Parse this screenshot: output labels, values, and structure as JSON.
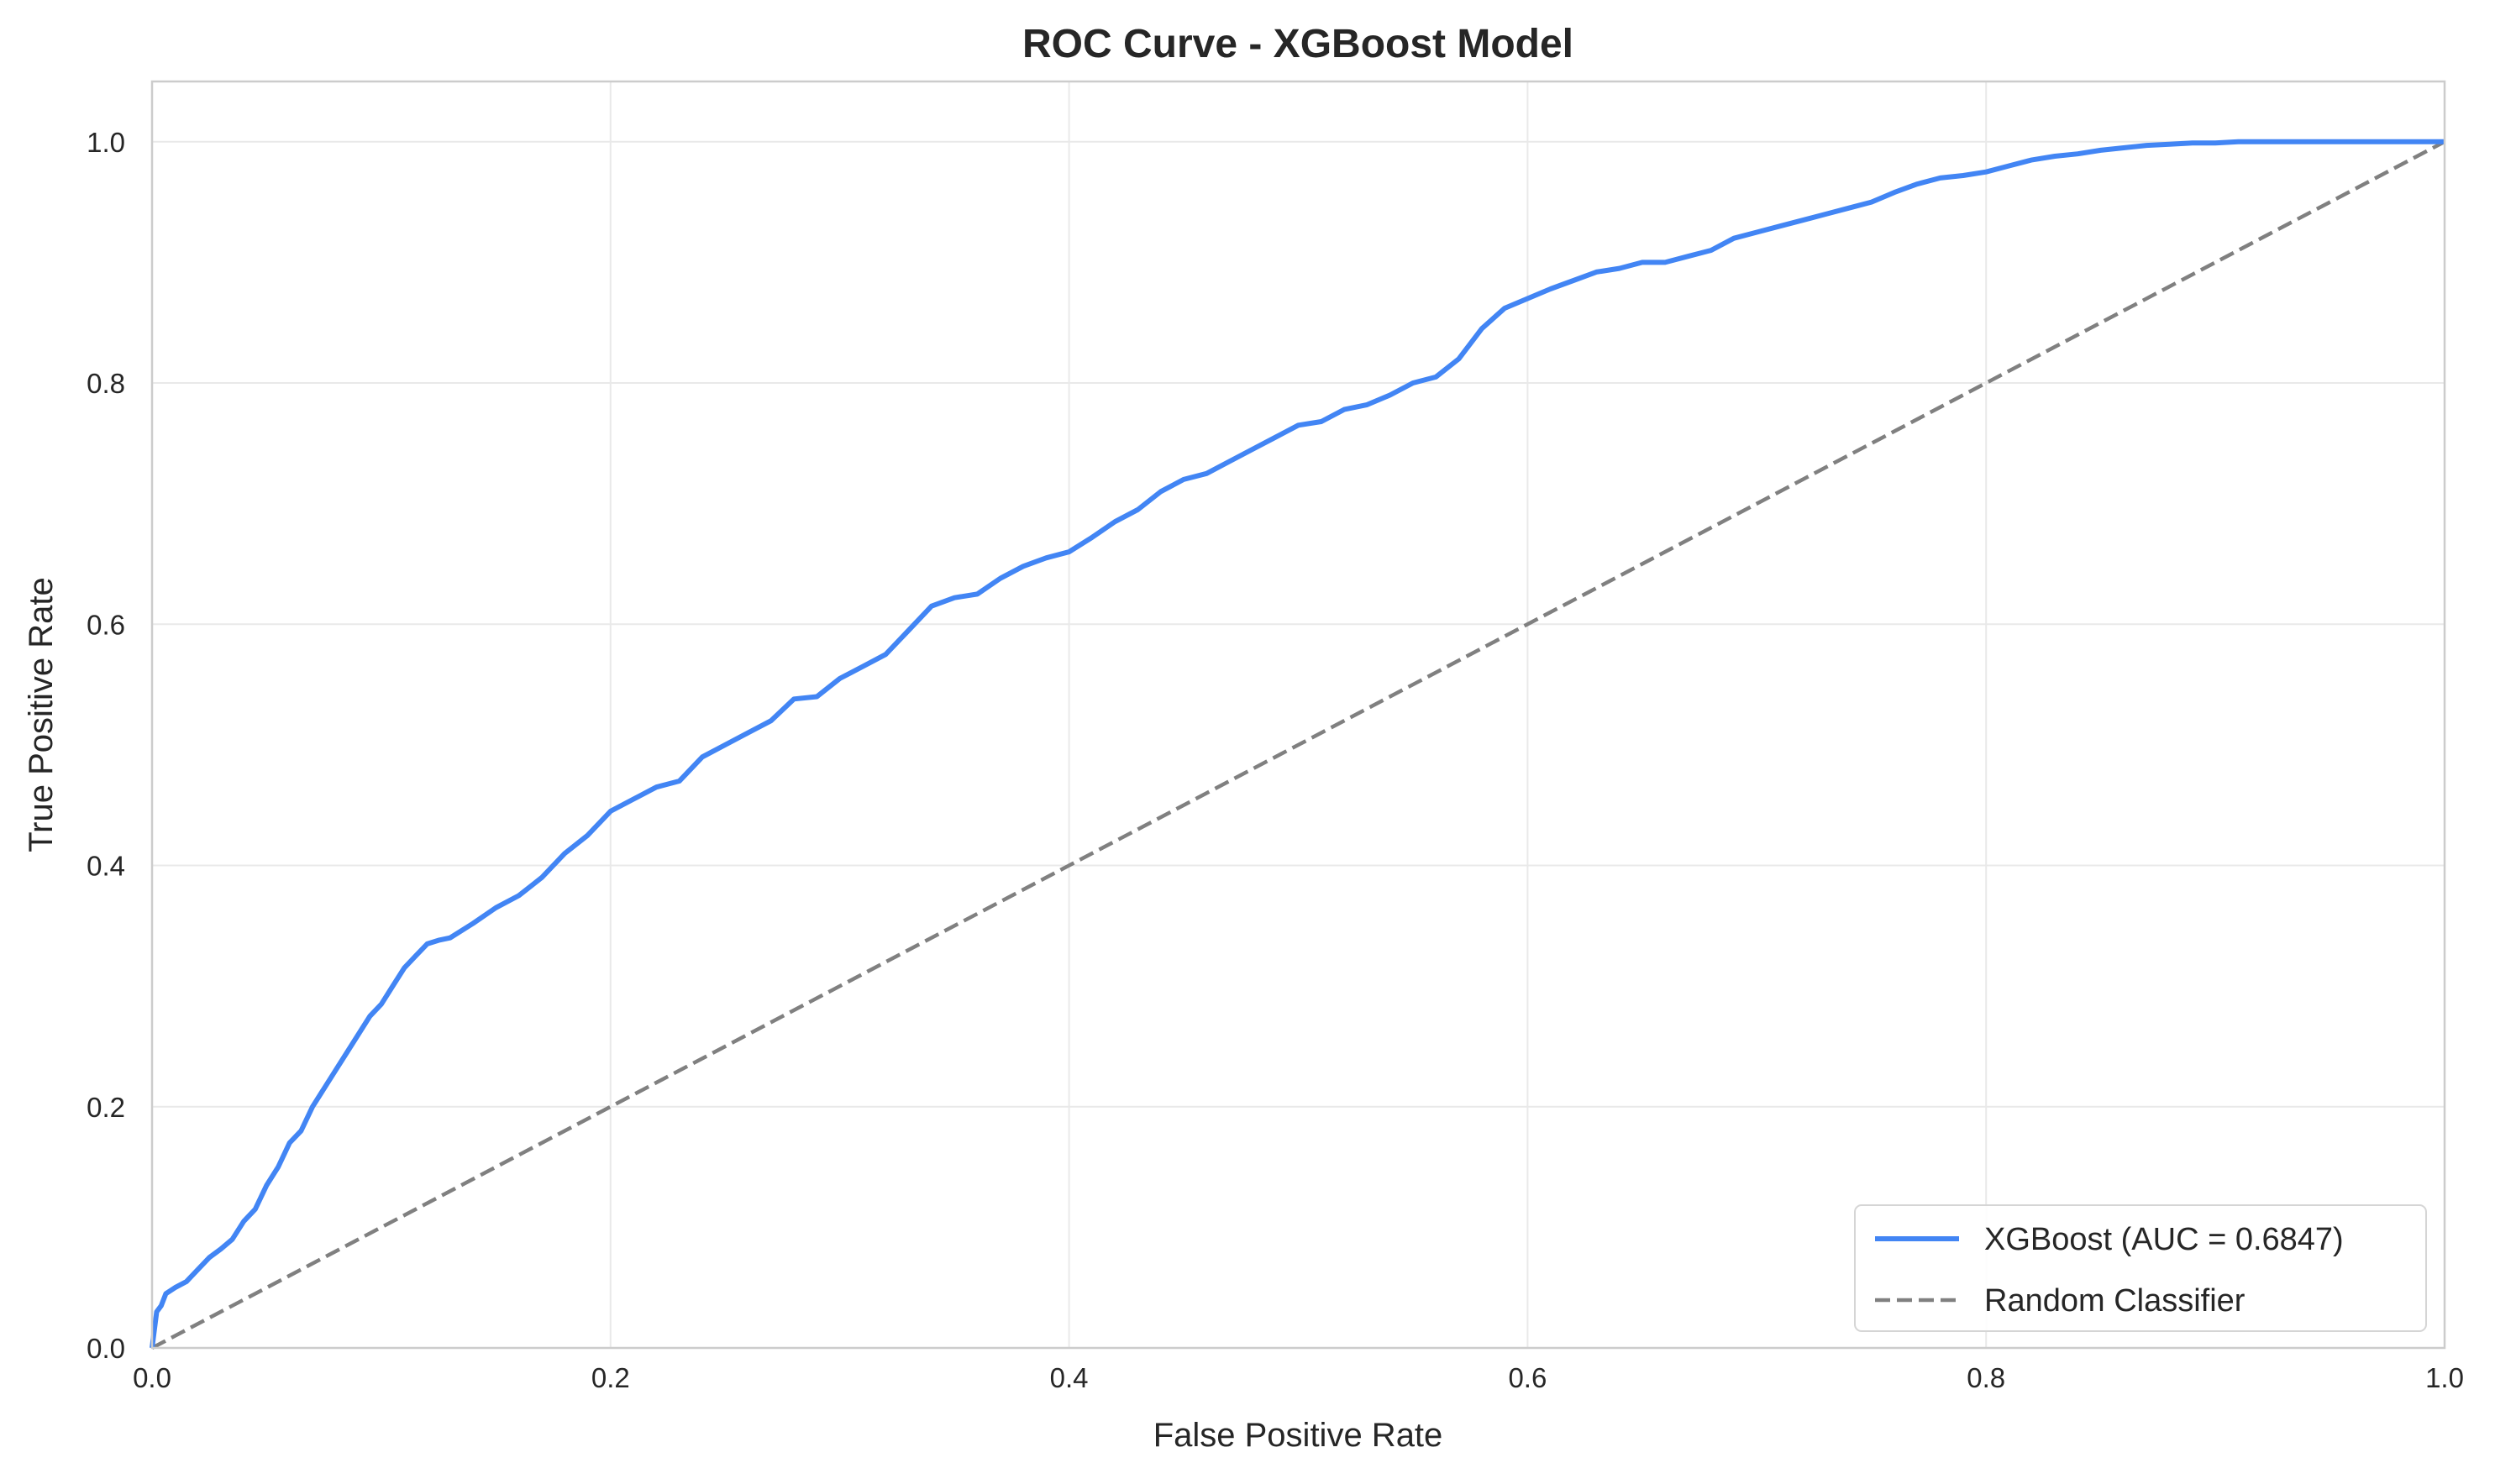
{
  "chart_data": {
    "type": "line",
    "title": "ROC Curve - XGBoost Model",
    "xlabel": "False Positive Rate",
    "ylabel": "True Positive Rate",
    "xlim": [
      0.0,
      1.0
    ],
    "ylim": [
      0.0,
      1.05
    ],
    "xticks": [
      "0.0",
      "0.2",
      "0.4",
      "0.6",
      "0.8",
      "1.0"
    ],
    "xtick_values": [
      0.0,
      0.2,
      0.4,
      0.6,
      0.8,
      1.0
    ],
    "yticks": [
      "0.0",
      "0.2",
      "0.4",
      "0.6",
      "0.8",
      "1.0"
    ],
    "ytick_values": [
      0.0,
      0.2,
      0.4,
      0.6,
      0.8,
      1.0
    ],
    "grid": true,
    "legend_position": "lower-right",
    "series": [
      {
        "name": "XGBoost (AUC = 0.6847)",
        "color": "#4285f4",
        "style": "solid",
        "x": [
          0.0,
          0.002,
          0.004,
          0.006,
          0.01,
          0.015,
          0.02,
          0.025,
          0.03,
          0.035,
          0.04,
          0.045,
          0.05,
          0.055,
          0.06,
          0.065,
          0.07,
          0.075,
          0.08,
          0.085,
          0.09,
          0.095,
          0.1,
          0.105,
          0.11,
          0.115,
          0.12,
          0.125,
          0.13,
          0.14,
          0.15,
          0.16,
          0.17,
          0.18,
          0.19,
          0.2,
          0.21,
          0.22,
          0.23,
          0.24,
          0.25,
          0.26,
          0.27,
          0.28,
          0.29,
          0.3,
          0.31,
          0.32,
          0.33,
          0.34,
          0.35,
          0.36,
          0.37,
          0.38,
          0.39,
          0.4,
          0.41,
          0.42,
          0.43,
          0.44,
          0.45,
          0.46,
          0.47,
          0.48,
          0.49,
          0.5,
          0.51,
          0.52,
          0.53,
          0.54,
          0.55,
          0.56,
          0.57,
          0.58,
          0.59,
          0.6,
          0.61,
          0.62,
          0.63,
          0.64,
          0.65,
          0.66,
          0.67,
          0.68,
          0.69,
          0.7,
          0.71,
          0.72,
          0.73,
          0.74,
          0.75,
          0.76,
          0.77,
          0.78,
          0.79,
          0.8,
          0.81,
          0.82,
          0.83,
          0.84,
          0.85,
          0.86,
          0.87,
          0.88,
          0.89,
          0.9,
          0.91,
          0.92,
          0.93,
          0.94,
          0.95,
          0.96,
          0.97,
          0.98,
          0.99,
          1.0
        ],
        "y": [
          0.0,
          0.03,
          0.035,
          0.045,
          0.05,
          0.055,
          0.065,
          0.075,
          0.082,
          0.09,
          0.105,
          0.115,
          0.135,
          0.15,
          0.17,
          0.18,
          0.2,
          0.215,
          0.23,
          0.245,
          0.26,
          0.275,
          0.285,
          0.3,
          0.315,
          0.325,
          0.335,
          0.338,
          0.34,
          0.352,
          0.365,
          0.375,
          0.39,
          0.41,
          0.425,
          0.445,
          0.455,
          0.465,
          0.47,
          0.49,
          0.5,
          0.51,
          0.52,
          0.538,
          0.54,
          0.555,
          0.565,
          0.575,
          0.595,
          0.615,
          0.622,
          0.625,
          0.638,
          0.648,
          0.655,
          0.66,
          0.672,
          0.685,
          0.695,
          0.71,
          0.72,
          0.725,
          0.735,
          0.745,
          0.755,
          0.765,
          0.768,
          0.778,
          0.782,
          0.79,
          0.8,
          0.805,
          0.82,
          0.845,
          0.862,
          0.87,
          0.878,
          0.885,
          0.892,
          0.895,
          0.9,
          0.9,
          0.905,
          0.91,
          0.92,
          0.925,
          0.93,
          0.935,
          0.94,
          0.945,
          0.95,
          0.958,
          0.965,
          0.97,
          0.972,
          0.975,
          0.98,
          0.985,
          0.988,
          0.99,
          0.993,
          0.995,
          0.997,
          0.998,
          0.999,
          0.999,
          1.0,
          1.0,
          1.0,
          1.0,
          1.0,
          1.0,
          1.0,
          1.0,
          1.0,
          1.0
        ]
      },
      {
        "name": "Random Classifier",
        "color": "#808080",
        "style": "dashed",
        "x": [
          0.0,
          1.0
        ],
        "y": [
          0.0,
          1.0
        ]
      }
    ]
  }
}
